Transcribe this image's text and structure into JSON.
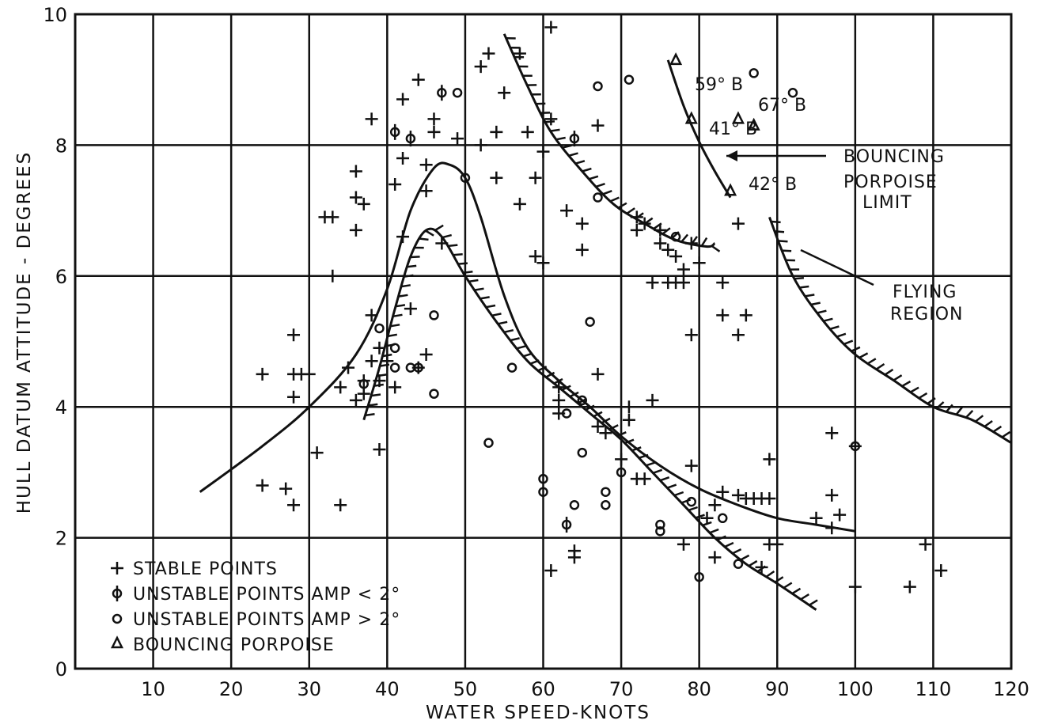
{
  "chart_data": {
    "type": "scatter",
    "title": "",
    "xlabel": "WATER SPEED-KNOTS",
    "ylabel": "HULL DATUM ATTITUDE - DEGREES",
    "xlim": [
      0,
      120
    ],
    "ylim": [
      0,
      10
    ],
    "grid": true,
    "legend_position": "bottom-left",
    "x_ticks": [
      "10",
      "20",
      "30",
      "40",
      "50",
      "60",
      "70",
      "80",
      "90",
      "100",
      "110",
      "120"
    ],
    "y_ticks": [
      "0",
      "2",
      "4",
      "6",
      "8",
      "10"
    ],
    "legend": [
      {
        "symbol": "+",
        "label": "STABLE POINTS"
      },
      {
        "symbol": "Φ",
        "label": "UNSTABLE POINTS AMP < 2°"
      },
      {
        "symbol": "o",
        "label": "UNSTABLE POINTS AMP > 2°"
      },
      {
        "symbol": "Δ",
        "label": "BOUNCING PORPOISE"
      }
    ],
    "series": [
      {
        "name": "STABLE POINTS",
        "marker": "plus",
        "points": [
          [
            24,
            4.5
          ],
          [
            24,
            2.8
          ],
          [
            27,
            2.75
          ],
          [
            28,
            5.1
          ],
          [
            28,
            4.5
          ],
          [
            28,
            4.15
          ],
          [
            28,
            2.5
          ],
          [
            29,
            4.5
          ],
          [
            30,
            4.5
          ],
          [
            31,
            3.3
          ],
          [
            32,
            6.9
          ],
          [
            33,
            6.9
          ],
          [
            33,
            6.0
          ],
          [
            34,
            4.3
          ],
          [
            34,
            2.5
          ],
          [
            35,
            4.6
          ],
          [
            36,
            7.6
          ],
          [
            36,
            7.2
          ],
          [
            36,
            6.7
          ],
          [
            36,
            4.1
          ],
          [
            37,
            7.1
          ],
          [
            37,
            4.4
          ],
          [
            37,
            4.2
          ],
          [
            38,
            8.4
          ],
          [
            38,
            4.7
          ],
          [
            38,
            5.4
          ],
          [
            39,
            3.35
          ],
          [
            39,
            4.4
          ],
          [
            39,
            4.9
          ],
          [
            40,
            4.7
          ],
          [
            41,
            7.4
          ],
          [
            41,
            4.3
          ],
          [
            42,
            8.7
          ],
          [
            42,
            6.6
          ],
          [
            42,
            7.8
          ],
          [
            43,
            5.5
          ],
          [
            44,
            9.0
          ],
          [
            44,
            4.6
          ],
          [
            45,
            7.7
          ],
          [
            45,
            7.3
          ],
          [
            45,
            4.8
          ],
          [
            46,
            8.4
          ],
          [
            46,
            8.2
          ],
          [
            47,
            6.5
          ],
          [
            49,
            8.1
          ],
          [
            52,
            9.2
          ],
          [
            52,
            8.0
          ],
          [
            53,
            9.4
          ],
          [
            54,
            8.2
          ],
          [
            54,
            7.5
          ],
          [
            55,
            8.8
          ],
          [
            57,
            9.4
          ],
          [
            57,
            7.1
          ],
          [
            58,
            8.2
          ],
          [
            59,
            7.5
          ],
          [
            59,
            6.3
          ],
          [
            60,
            7.9
          ],
          [
            60,
            6.2
          ],
          [
            61,
            8.4
          ],
          [
            61,
            9.8
          ],
          [
            61,
            1.5
          ],
          [
            62,
            4.3
          ],
          [
            62,
            4.1
          ],
          [
            62,
            3.9
          ],
          [
            63,
            7.0
          ],
          [
            64,
            1.8
          ],
          [
            64,
            1.7
          ],
          [
            65,
            6.8
          ],
          [
            65,
            6.4
          ],
          [
            67,
            8.3
          ],
          [
            67,
            4.5
          ],
          [
            67,
            3.7
          ],
          [
            68,
            3.6
          ],
          [
            70,
            3.2
          ],
          [
            71,
            4.0
          ],
          [
            71,
            3.8
          ],
          [
            72,
            6.9
          ],
          [
            72,
            6.7
          ],
          [
            72,
            2.9
          ],
          [
            73,
            6.8
          ],
          [
            73,
            2.9
          ],
          [
            74,
            5.9
          ],
          [
            74,
            4.1
          ],
          [
            75,
            6.7
          ],
          [
            75,
            6.5
          ],
          [
            76,
            6.4
          ],
          [
            76,
            5.9
          ],
          [
            77,
            6.3
          ],
          [
            77,
            5.9
          ],
          [
            78,
            6.1
          ],
          [
            78,
            5.9
          ],
          [
            78,
            1.9
          ],
          [
            79,
            6.5
          ],
          [
            79,
            5.1
          ],
          [
            79,
            3.1
          ],
          [
            80,
            6.2
          ],
          [
            81,
            2.3
          ],
          [
            82,
            2.5
          ],
          [
            82,
            1.7
          ],
          [
            83,
            5.9
          ],
          [
            83,
            5.4
          ],
          [
            83,
            2.7
          ],
          [
            85,
            6.8
          ],
          [
            85,
            5.1
          ],
          [
            85,
            2.65
          ],
          [
            86,
            5.4
          ],
          [
            86,
            2.6
          ],
          [
            87,
            2.6
          ],
          [
            88,
            1.55
          ],
          [
            88,
            2.6
          ],
          [
            89,
            3.2
          ],
          [
            89,
            2.6
          ],
          [
            89,
            1.9
          ],
          [
            90,
            1.9
          ],
          [
            95,
            2.3
          ],
          [
            97,
            3.6
          ],
          [
            97,
            2.65
          ],
          [
            97,
            2.15
          ],
          [
            98,
            2.35
          ],
          [
            100,
            3.4
          ],
          [
            100,
            1.25
          ],
          [
            107,
            1.25
          ],
          [
            109,
            1.9
          ],
          [
            111,
            1.5
          ]
        ]
      },
      {
        "name": "UNSTABLE POINTS AMP < 2°",
        "marker": "phi",
        "points": [
          [
            47,
            8.8
          ],
          [
            41,
            8.2
          ],
          [
            43,
            8.1
          ],
          [
            64,
            8.1
          ],
          [
            63,
            2.2
          ]
        ]
      },
      {
        "name": "UNSTABLE POINTS AMP > 2°",
        "marker": "circle",
        "points": [
          [
            37,
            4.35
          ],
          [
            39,
            5.2
          ],
          [
            41,
            4.9
          ],
          [
            41,
            4.6
          ],
          [
            43,
            4.6
          ],
          [
            44,
            4.6
          ],
          [
            46,
            5.4
          ],
          [
            46,
            4.2
          ],
          [
            49,
            8.8
          ],
          [
            50,
            7.5
          ],
          [
            53,
            3.45
          ],
          [
            56,
            4.6
          ],
          [
            60,
            2.9
          ],
          [
            60,
            2.7
          ],
          [
            63,
            3.9
          ],
          [
            64,
            2.5
          ],
          [
            65,
            4.1
          ],
          [
            65,
            3.3
          ],
          [
            66,
            5.3
          ],
          [
            67,
            7.2
          ],
          [
            67,
            8.9
          ],
          [
            68,
            2.7
          ],
          [
            68,
            2.5
          ],
          [
            70,
            3.0
          ],
          [
            71,
            9.0
          ],
          [
            75,
            2.2
          ],
          [
            75,
            2.1
          ],
          [
            77,
            6.6
          ],
          [
            79,
            2.55
          ],
          [
            80,
            1.4
          ],
          [
            83,
            2.3
          ],
          [
            85,
            1.6
          ],
          [
            87,
            9.1
          ],
          [
            92,
            8.8
          ],
          [
            100,
            3.4
          ]
        ]
      },
      {
        "name": "BOUNCING PORPOISE",
        "marker": "triangle",
        "points": [
          [
            77,
            9.3
          ],
          [
            79,
            8.4
          ],
          [
            84,
            7.3
          ],
          [
            85,
            8.4
          ],
          [
            87,
            8.3
          ]
        ]
      }
    ],
    "curves": [
      {
        "name": "upper hump curve",
        "points": [
          [
            16,
            2.7
          ],
          [
            24,
            3.4
          ],
          [
            30,
            4.0
          ],
          [
            36,
            4.8
          ],
          [
            40,
            5.8
          ],
          [
            43,
            7.0
          ],
          [
            46,
            7.65
          ],
          [
            48,
            7.7
          ],
          [
            50,
            7.5
          ],
          [
            52,
            6.9
          ],
          [
            55,
            5.7
          ],
          [
            58,
            4.9
          ],
          [
            62,
            4.4
          ],
          [
            66,
            4.0
          ],
          [
            70,
            3.55
          ],
          [
            75,
            3.1
          ],
          [
            80,
            2.75
          ],
          [
            85,
            2.5
          ],
          [
            90,
            2.3
          ],
          [
            95,
            2.2
          ],
          [
            100,
            2.1
          ]
        ]
      },
      {
        "name": "lower hatched hump",
        "hatched": true,
        "points": [
          [
            37,
            3.8
          ],
          [
            39,
            4.6
          ],
          [
            41,
            5.5
          ],
          [
            43,
            6.3
          ],
          [
            45,
            6.7
          ],
          [
            47,
            6.6
          ],
          [
            50,
            6.0
          ],
          [
            54,
            5.3
          ],
          [
            58,
            4.7
          ],
          [
            62,
            4.3
          ],
          [
            66,
            3.9
          ],
          [
            70,
            3.5
          ],
          [
            74,
            3.0
          ],
          [
            78,
            2.5
          ],
          [
            82,
            2.0
          ],
          [
            86,
            1.6
          ],
          [
            90,
            1.3
          ],
          [
            95,
            0.9
          ]
        ]
      },
      {
        "name": "upper hatched limit",
        "hatched": true,
        "points": [
          [
            55,
            9.7
          ],
          [
            58,
            8.9
          ],
          [
            61,
            8.2
          ],
          [
            65,
            7.6
          ],
          [
            69,
            7.1
          ],
          [
            73,
            6.8
          ],
          [
            77,
            6.55
          ],
          [
            81,
            6.45
          ],
          [
            82,
            6.5
          ]
        ]
      },
      {
        "name": "bouncing porpoise limit",
        "points": [
          [
            76,
            9.3
          ],
          [
            78,
            8.6
          ],
          [
            80,
            8.05
          ],
          [
            82,
            7.6
          ],
          [
            84,
            7.2
          ]
        ]
      },
      {
        "name": "flying region boundary",
        "hatched": true,
        "points": [
          [
            89,
            6.9
          ],
          [
            92,
            6.0
          ],
          [
            96,
            5.3
          ],
          [
            100,
            4.8
          ],
          [
            105,
            4.4
          ],
          [
            110,
            4.0
          ],
          [
            115,
            3.8
          ],
          [
            120,
            3.45
          ]
        ]
      }
    ],
    "annotations": [
      {
        "text": "59° B",
        "x": 77,
        "y": 9.3
      },
      {
        "text": "67° B",
        "x": 85,
        "y": 8.4
      },
      {
        "text": "41° B",
        "x": 79,
        "y": 8.4
      },
      {
        "text": "42° B",
        "x": 84,
        "y": 7.3
      },
      {
        "text": "BOUNCING PORPOISE LIMIT",
        "x": 81,
        "y": 7.9
      },
      {
        "text": "FLYING REGION",
        "x": 91,
        "y": 6.3
      }
    ]
  },
  "labels": {
    "annot_59": "59° B",
    "annot_67": "67° B",
    "annot_41": "41° B",
    "annot_42": "42° B",
    "bouncing_line1": "BOUNCING",
    "bouncing_line2": "PORPOISE",
    "bouncing_line3": "LIMIT",
    "flying_line1": "FLYING",
    "flying_line2": "REGION"
  }
}
